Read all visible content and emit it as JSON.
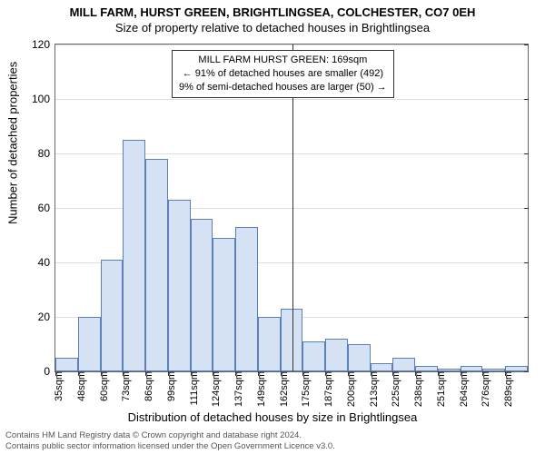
{
  "title": "MILL FARM, HURST GREEN, BRIGHTLINGSEA, COLCHESTER, CO7 0EH",
  "subtitle": "Size of property relative to detached houses in Brightlingsea",
  "chart": {
    "type": "histogram",
    "ylabel": "Number of detached properties",
    "xlabel": "Distribution of detached houses by size in Brightlingsea",
    "ylim": [
      0,
      120
    ],
    "yticks": [
      0,
      20,
      40,
      60,
      80,
      100,
      120
    ],
    "xticks_sqm": [
      35,
      48,
      60,
      73,
      86,
      99,
      111,
      124,
      137,
      149,
      162,
      175,
      187,
      200,
      213,
      225,
      238,
      251,
      264,
      276,
      289
    ],
    "xtick_suffix": "sqm",
    "bar_fill": "#d5e2f4",
    "bar_border": "#5b7fb8",
    "grid_color": "#dddddd",
    "axis_color": "#666666",
    "background": "#ffffff",
    "bars": [
      {
        "x": 35,
        "h": 5
      },
      {
        "x": 48,
        "h": 20
      },
      {
        "x": 60,
        "h": 41
      },
      {
        "x": 73,
        "h": 85
      },
      {
        "x": 86,
        "h": 78
      },
      {
        "x": 99,
        "h": 63
      },
      {
        "x": 111,
        "h": 56
      },
      {
        "x": 124,
        "h": 49
      },
      {
        "x": 137,
        "h": 53
      },
      {
        "x": 149,
        "h": 20
      },
      {
        "x": 162,
        "h": 23
      },
      {
        "x": 175,
        "h": 11
      },
      {
        "x": 187,
        "h": 12
      },
      {
        "x": 200,
        "h": 10
      },
      {
        "x": 213,
        "h": 3
      },
      {
        "x": 225,
        "h": 5
      },
      {
        "x": 238,
        "h": 2
      },
      {
        "x": 251,
        "h": 1
      },
      {
        "x": 264,
        "h": 2
      },
      {
        "x": 276,
        "h": 1
      },
      {
        "x": 289,
        "h": 2
      }
    ],
    "reference_line_sqm": 169,
    "annotation": {
      "line1": "MILL FARM HURST GREEN: 169sqm",
      "line2": "← 91% of detached houses are smaller (492)",
      "line3": "9% of semi-detached houses are larger (50) →"
    }
  },
  "footer": {
    "line1": "Contains HM Land Registry data © Crown copyright and database right 2024.",
    "line2": "Contains public sector information licensed under the Open Government Licence v3.0."
  }
}
